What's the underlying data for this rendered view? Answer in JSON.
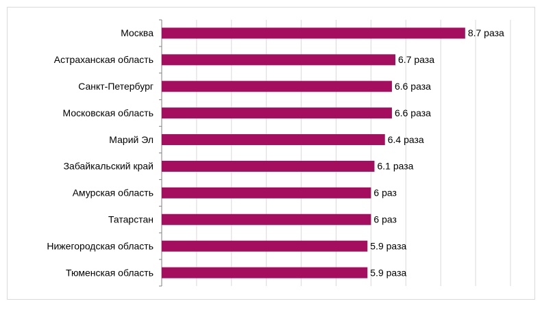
{
  "chart_data": {
    "type": "bar",
    "orientation": "horizontal",
    "categories": [
      "Москва",
      "Астраханская область",
      "Санкт-Петербург",
      "Московская область",
      "Марий Эл",
      "Забайкальский край",
      "Амурская область",
      "Татарстан",
      "Нижегородская область",
      "Тюменская область"
    ],
    "values": [
      8.7,
      6.7,
      6.6,
      6.6,
      6.4,
      6.1,
      6,
      6,
      5.9,
      5.9
    ],
    "value_labels": [
      "8.7 раза",
      "6.7 раза",
      "6.6 раза",
      "6.6 раза",
      "6.4 раза",
      "6.1 раза",
      "6 раз",
      "6 раз",
      "5.9 раза",
      "5.9 раза"
    ],
    "color": "#a50d5e",
    "xlim": [
      0,
      10
    ],
    "xticks": [
      0,
      1,
      2,
      3,
      4,
      5,
      6,
      7,
      8,
      9,
      10
    ],
    "grid": true
  }
}
